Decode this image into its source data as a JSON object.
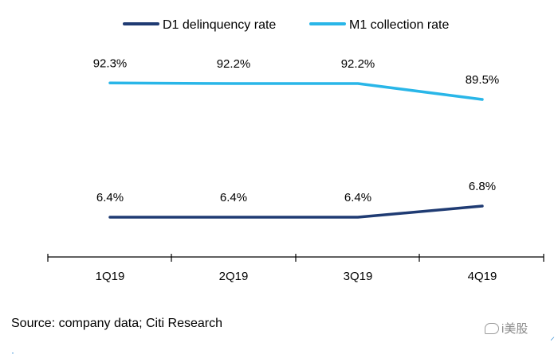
{
  "chart_data": {
    "type": "line",
    "categories": [
      "1Q19",
      "2Q19",
      "3Q19",
      "4Q19"
    ],
    "series": [
      {
        "name": "D1 delinquency rate",
        "values": [
          6.4,
          6.4,
          6.4,
          6.8
        ],
        "labels": [
          "6.4%",
          "6.4%",
          "6.4%",
          "6.8%"
        ],
        "color": "#1f3b73"
      },
      {
        "name": "M1 collection rate",
        "values": [
          92.3,
          92.2,
          92.2,
          89.5
        ],
        "labels": [
          "92.3%",
          "92.2%",
          "92.2%",
          "89.5%"
        ],
        "color": "#29b6e8"
      }
    ],
    "legend_position": "top",
    "grid": false
  },
  "source": "Source:  company data; Citi Research",
  "watermark": "i美股"
}
